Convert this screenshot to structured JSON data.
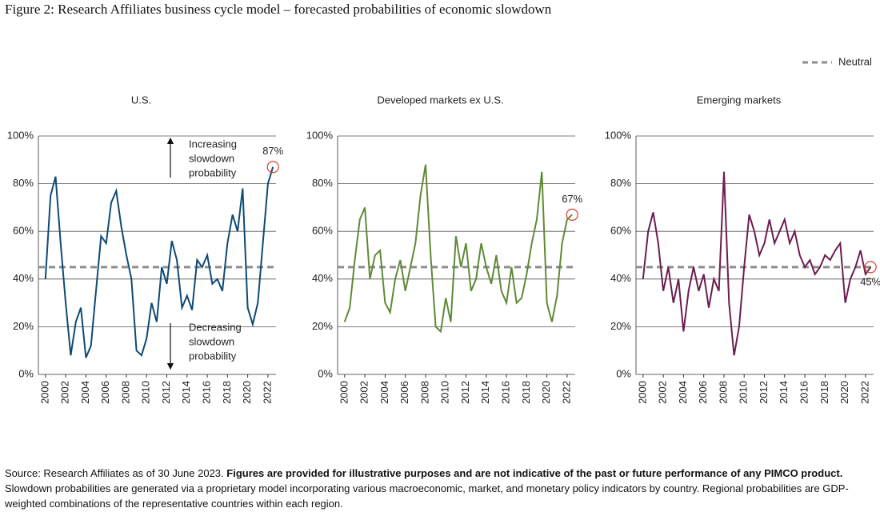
{
  "title": "Figure 2: Research Affiliates business cycle model – forecasted probabilities of economic slowdown",
  "legend": {
    "label": "Neutral",
    "color": "#8c8c8c",
    "position": "top-right"
  },
  "chart_data": [
    {
      "type": "line",
      "title": "U.S.",
      "color": "#0e4a73",
      "neutral": 45,
      "x": [
        2000,
        2000.5,
        2001,
        2001.5,
        2002,
        2002.5,
        2003,
        2003.5,
        2004,
        2004.5,
        2005,
        2005.5,
        2006,
        2006.5,
        2007,
        2007.5,
        2008,
        2008.5,
        2009,
        2009.5,
        2010,
        2010.5,
        2011,
        2011.5,
        2012,
        2012.5,
        2013,
        2013.5,
        2014,
        2014.5,
        2015,
        2015.5,
        2016,
        2016.5,
        2017,
        2017.5,
        2018,
        2018.5,
        2019,
        2019.5,
        2020,
        2020.5,
        2021,
        2021.5,
        2022,
        2022.5
      ],
      "values": [
        40,
        75,
        83,
        55,
        30,
        8,
        22,
        28,
        7,
        12,
        35,
        58,
        55,
        72,
        77,
        62,
        50,
        40,
        10,
        8,
        15,
        30,
        22,
        45,
        38,
        56,
        48,
        28,
        33,
        27,
        48,
        45,
        50,
        38,
        40,
        35,
        55,
        67,
        60,
        78,
        28,
        21,
        30,
        55,
        80,
        87
      ],
      "last_label": "87%",
      "last_label_side": "above",
      "annotations": [
        {
          "lines": [
            "Increasing",
            "slowdown",
            "probability"
          ],
          "direction": "up"
        },
        {
          "lines": [
            "Decreasing",
            "slowdown",
            "probability"
          ],
          "direction": "down"
        }
      ],
      "xlim": [
        1999.3,
        2022.8
      ],
      "ylim": [
        0,
        100
      ],
      "xticks": [
        2000,
        2002,
        2004,
        2006,
        2008,
        2010,
        2012,
        2014,
        2016,
        2018,
        2020,
        2022
      ],
      "yticks": [
        {
          "value": 0,
          "label": "0%"
        },
        {
          "value": 20,
          "label": "20%"
        },
        {
          "value": 40,
          "label": "40%"
        },
        {
          "value": 60,
          "label": "60%"
        },
        {
          "value": 80,
          "label": "80%"
        },
        {
          "value": 100,
          "label": "100%"
        }
      ],
      "grid": true
    },
    {
      "type": "line",
      "title": "Developed markets ex U.S.",
      "color": "#5f8a37",
      "neutral": 45,
      "x": [
        2000,
        2000.5,
        2001,
        2001.5,
        2002,
        2002.5,
        2003,
        2003.5,
        2004,
        2004.5,
        2005,
        2005.5,
        2006,
        2006.5,
        2007,
        2007.5,
        2008,
        2008.5,
        2009,
        2009.5,
        2010,
        2010.5,
        2011,
        2011.5,
        2012,
        2012.5,
        2013,
        2013.5,
        2014,
        2014.5,
        2015,
        2015.5,
        2016,
        2016.5,
        2017,
        2017.5,
        2018,
        2018.5,
        2019,
        2019.5,
        2020,
        2020.5,
        2021,
        2021.5,
        2022,
        2022.5
      ],
      "values": [
        22,
        28,
        48,
        65,
        70,
        40,
        50,
        52,
        30,
        26,
        40,
        48,
        35,
        45,
        55,
        75,
        88,
        50,
        20,
        18,
        32,
        22,
        58,
        45,
        55,
        35,
        40,
        55,
        45,
        38,
        50,
        35,
        30,
        45,
        30,
        32,
        42,
        55,
        65,
        85,
        30,
        22,
        33,
        55,
        65,
        67
      ],
      "last_label": "67%",
      "last_label_side": "above",
      "xlim": [
        1999.3,
        2022.8
      ],
      "ylim": [
        0,
        100
      ],
      "xticks": [
        2000,
        2002,
        2004,
        2006,
        2008,
        2010,
        2012,
        2014,
        2016,
        2018,
        2020,
        2022
      ],
      "yticks": [
        {
          "value": 0,
          "label": "0%"
        },
        {
          "value": 20,
          "label": "20%"
        },
        {
          "value": 40,
          "label": "40%"
        },
        {
          "value": 60,
          "label": "60%"
        },
        {
          "value": 80,
          "label": "80%"
        },
        {
          "value": 100,
          "label": "100%"
        }
      ],
      "grid": true
    },
    {
      "type": "line",
      "title": "Emerging markets",
      "color": "#6b1d4f",
      "neutral": 45,
      "x": [
        2000,
        2000.5,
        2001,
        2001.5,
        2002,
        2002.5,
        2003,
        2003.5,
        2004,
        2004.5,
        2005,
        2005.5,
        2006,
        2006.5,
        2007,
        2007.5,
        2008,
        2008.5,
        2009,
        2009.5,
        2010,
        2010.5,
        2011,
        2011.5,
        2012,
        2012.5,
        2013,
        2013.5,
        2014,
        2014.5,
        2015,
        2015.5,
        2016,
        2016.5,
        2017,
        2017.5,
        2018,
        2018.5,
        2019,
        2019.5,
        2020,
        2020.5,
        2021,
        2021.5,
        2022,
        2022.5
      ],
      "values": [
        40,
        60,
        68,
        55,
        35,
        45,
        30,
        40,
        18,
        35,
        45,
        35,
        42,
        28,
        40,
        35,
        85,
        30,
        8,
        20,
        45,
        67,
        60,
        50,
        55,
        65,
        55,
        60,
        65,
        55,
        60,
        50,
        45,
        48,
        42,
        45,
        50,
        48,
        52,
        55,
        30,
        40,
        45,
        52,
        42,
        45
      ],
      "last_label": "45%",
      "last_label_side": "below",
      "xlim": [
        1999.3,
        2022.8
      ],
      "ylim": [
        0,
        100
      ],
      "xticks": [
        2000,
        2002,
        2004,
        2006,
        2008,
        2010,
        2012,
        2014,
        2016,
        2018,
        2020,
        2022
      ],
      "yticks": [
        {
          "value": 0,
          "label": "0%"
        },
        {
          "value": 20,
          "label": "20%"
        },
        {
          "value": 40,
          "label": "40%"
        },
        {
          "value": 60,
          "label": "60%"
        },
        {
          "value": 80,
          "label": "80%"
        },
        {
          "value": 100,
          "label": "100%"
        }
      ],
      "grid": true
    }
  ],
  "footer": {
    "source": "Source: Research Affiliates as of 30 June 2023.",
    "disclaimer": "Figures are provided for illustrative purposes and are not indicative of the past or future performance of any PIMCO product.",
    "note": "Slowdown probabilities are generated via a proprietary model incorporating various macroeconomic, market, and monetary policy indicators by country. Regional probabilities are GDP-weighted combinations of the representative countries within each region."
  }
}
